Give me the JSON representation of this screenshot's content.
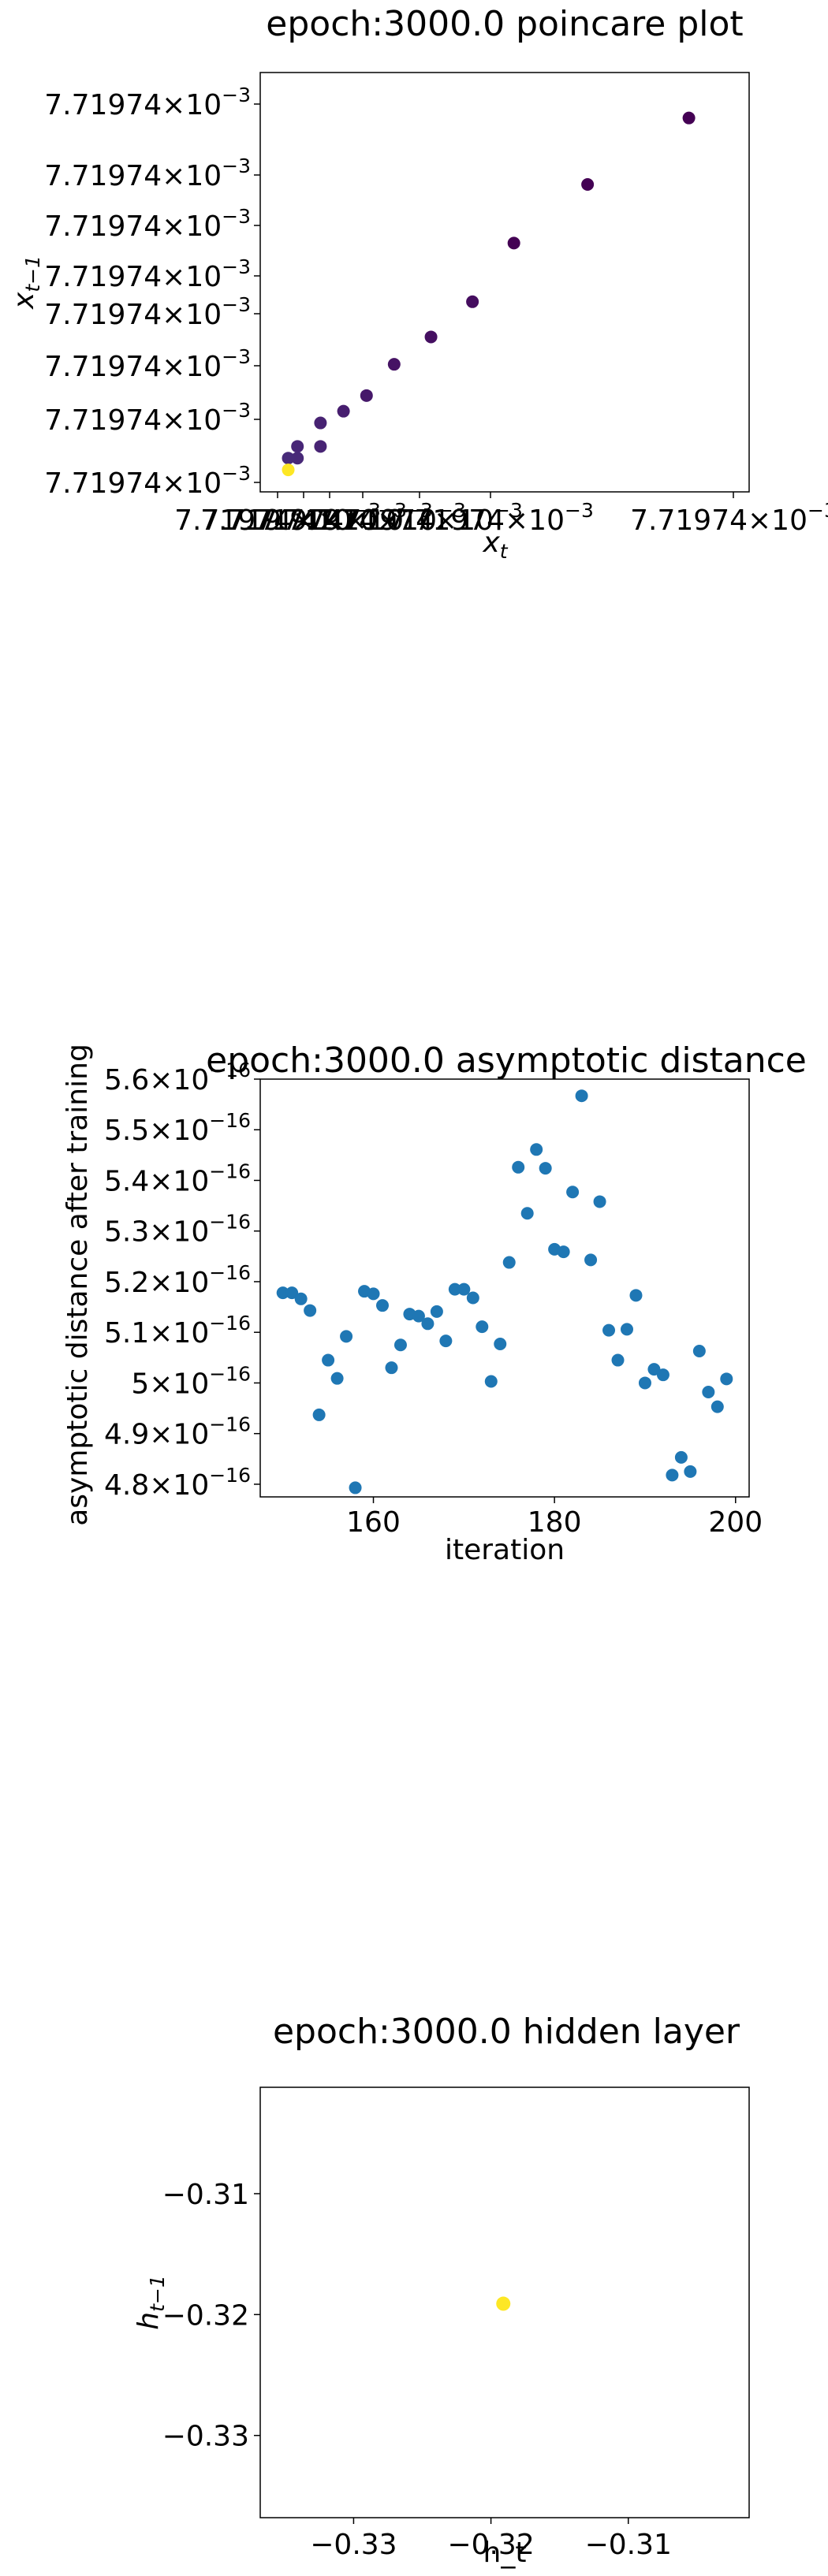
{
  "chart_data": [
    {
      "type": "scatter",
      "title": "epoch:3000.0 poincare plot",
      "xlabel": "x",
      "xlabel_sub": "t",
      "ylabel": "x",
      "ylabel_sub": "t−1",
      "tick_mantissa": "7.71974",
      "tick_times": "×10",
      "tick_exp": "−3",
      "x_tick_count": 7,
      "y_tick_count": 8,
      "colormap": [
        "#440154",
        "#482878",
        "#3e4989",
        "#fde725"
      ],
      "points": [
        {
          "x": 0.9,
          "y": 0.92,
          "c": 0
        },
        {
          "x": 0.68,
          "y": 0.75,
          "c": 0
        },
        {
          "x": 0.52,
          "y": 0.6,
          "c": 0
        },
        {
          "x": 0.43,
          "y": 0.45,
          "c": 0.1
        },
        {
          "x": 0.34,
          "y": 0.36,
          "c": 0.12
        },
        {
          "x": 0.26,
          "y": 0.29,
          "c": 0.15
        },
        {
          "x": 0.2,
          "y": 0.21,
          "c": 0.2
        },
        {
          "x": 0.15,
          "y": 0.17,
          "c": 0.25
        },
        {
          "x": 0.1,
          "y": 0.14,
          "c": 0.28
        },
        {
          "x": 0.1,
          "y": 0.08,
          "c": 0.3
        },
        {
          "x": 0.05,
          "y": 0.08,
          "c": 0.32
        },
        {
          "x": 0.05,
          "y": 0.05,
          "c": 0.34
        },
        {
          "x": 0.03,
          "y": 0.05,
          "c": 0.36
        },
        {
          "x": 0.03,
          "y": 0.02,
          "c": 1
        }
      ]
    },
    {
      "type": "scatter",
      "title": "epoch:3000.0 asymptotic distance",
      "xlabel": "iteration",
      "ylabel": "asymptotic distance after training",
      "xlim": [
        147.5,
        201.5
      ],
      "ylim": [
        4.775,
        5.6
      ],
      "xticks": [
        160,
        180,
        200
      ],
      "yticks": [
        4.8,
        4.9,
        5,
        5.1,
        5.2,
        5.3,
        5.4,
        5.5,
        5.6
      ],
      "ytick_labels": [
        "4.8",
        "4.9",
        "5",
        "5.1",
        "5.2",
        "5.3",
        "5.4",
        "5.5",
        "5.6"
      ],
      "ytick_times": "×10",
      "ytick_exp": "−16",
      "color": "#1f77b4",
      "x": [
        150,
        151,
        152,
        153,
        154,
        155,
        156,
        157,
        158,
        159,
        160,
        161,
        162,
        163,
        164,
        165,
        166,
        167,
        168,
        169,
        170,
        171,
        172,
        173,
        174,
        175,
        176,
        177,
        178,
        179,
        180,
        181,
        182,
        183,
        184,
        185,
        186,
        187,
        188,
        189,
        190,
        191,
        192,
        193,
        194,
        195,
        196,
        197,
        198,
        199
      ],
      "y": [
        5.178,
        5.178,
        5.166,
        5.143,
        4.937,
        5.045,
        5.009,
        5.092,
        4.793,
        5.181,
        5.176,
        5.153,
        5.03,
        5.075,
        5.136,
        5.132,
        5.117,
        5.141,
        5.083,
        5.185,
        5.185,
        5.168,
        5.111,
        5.003,
        5.077,
        5.238,
        5.426,
        5.335,
        5.461,
        5.424,
        5.264,
        5.259,
        5.377,
        5.567,
        5.243,
        5.358,
        5.104,
        5.045,
        5.106,
        5.173,
        5.0,
        5.027,
        5.016,
        4.818,
        4.853,
        4.825,
        5.063,
        4.982,
        4.953,
        5.008
      ]
    },
    {
      "type": "scatter",
      "title": "epoch:3000.0 hidden layer",
      "xlabel": "h_t",
      "ylabel": "h",
      "ylabel_sub": "t−1",
      "xlim": [
        -0.3368,
        -0.3012
      ],
      "ylim": [
        -0.3368,
        -0.3012
      ],
      "xticks": [
        -0.33,
        -0.32,
        -0.31
      ],
      "yticks": [
        -0.31,
        -0.32,
        -0.33
      ],
      "xtick_labels": [
        "−0.33",
        "−0.32",
        "−0.31"
      ],
      "ytick_labels": [
        "−0.31",
        "−0.32",
        "−0.33"
      ],
      "color": "#fde725",
      "points": [
        {
          "x": -0.3191,
          "y": -0.3191
        }
      ]
    }
  ]
}
